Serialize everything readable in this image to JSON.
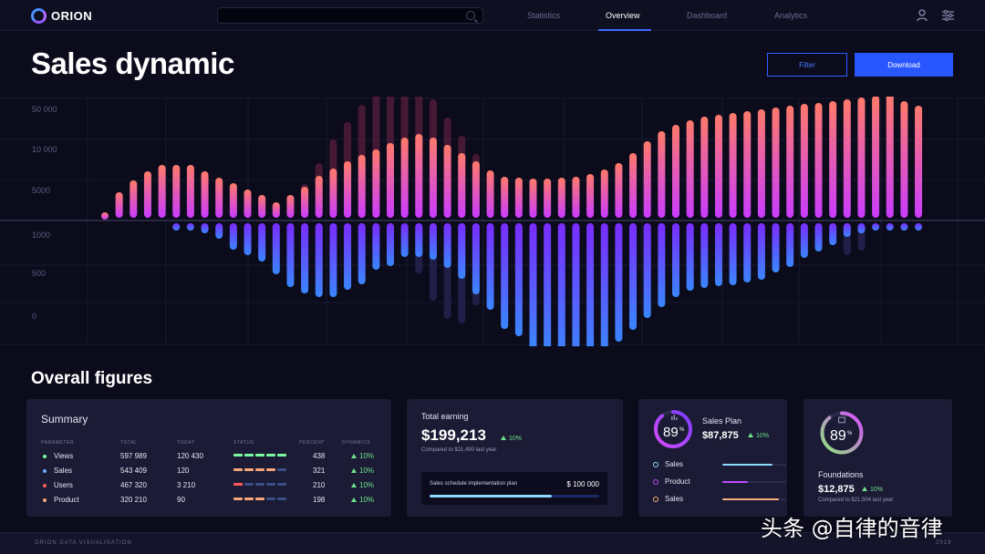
{
  "app": {
    "brand": "ORION"
  },
  "nav": {
    "items": [
      "Statistics",
      "Overview",
      "Dashboard",
      "Analytics"
    ],
    "active": "Overview"
  },
  "header": {
    "title": "Sales dynamic",
    "filter_label": "Filter",
    "download_label": "Download"
  },
  "chart_data": {
    "type": "bar",
    "y_tick_labels_upper": [
      "50 000",
      "10 000",
      "5000"
    ],
    "y_tick_labels_lower": [
      "1000",
      "500",
      "0"
    ],
    "series": [
      {
        "direction": "up",
        "values_bright": [
          0.06,
          0.28,
          0.41,
          0.51,
          0.58,
          0.58,
          0.58,
          0.51,
          0.44,
          0.38,
          0.31,
          0.25,
          0.17,
          0.25,
          0.34,
          0.46,
          0.54,
          0.62,
          0.69,
          0.75,
          0.82,
          0.88,
          0.92,
          0.88,
          0.8,
          0.71,
          0.62,
          0.52,
          0.45,
          0.44,
          0.43,
          0.43,
          0.44,
          0.45,
          0.48,
          0.53,
          0.6,
          0.71,
          0.84,
          0.95,
          1.02,
          1.07,
          1.11,
          1.13,
          1.15,
          1.17,
          1.19,
          1.21,
          1.23,
          1.25,
          1.26,
          1.28,
          1.3,
          1.32,
          1.34,
          1.36,
          1.28,
          1.23
        ],
        "values_dim": [
          0,
          0,
          0,
          0,
          0,
          0,
          0,
          0,
          0,
          0,
          0,
          0,
          0,
          0.2,
          0.37,
          0.6,
          0.86,
          1.05,
          1.24,
          1.4,
          1.5,
          1.5,
          1.4,
          1.3,
          1.1,
          0.9,
          0.7,
          0,
          0,
          0,
          0,
          0,
          0,
          0,
          0,
          0,
          0,
          0,
          0,
          0,
          0,
          0,
          0,
          0,
          0,
          0,
          0,
          0,
          0,
          0,
          0,
          0,
          0,
          0,
          0,
          1.3,
          0,
          0
        ]
      },
      {
        "direction": "down",
        "values_bright": [
          0,
          0,
          0,
          0,
          0,
          0.08,
          0.08,
          0.11,
          0.17,
          0.29,
          0.35,
          0.42,
          0.56,
          0.7,
          0.77,
          0.81,
          0.81,
          0.73,
          0.67,
          0.51,
          0.47,
          0.37,
          0.37,
          0.4,
          0.49,
          0.61,
          0.78,
          0.95,
          1.16,
          1.24,
          1.38,
          1.41,
          1.47,
          1.48,
          1.46,
          1.41,
          1.3,
          1.17,
          1.04,
          0.92,
          0.81,
          0.74,
          0.71,
          0.69,
          0.68,
          0.65,
          0.62,
          0.54,
          0.48,
          0.38,
          0.31,
          0.24,
          0.15,
          0.11,
          0.06,
          0.06,
          0.06,
          0.06
        ],
        "values_dim": [
          0,
          0,
          0,
          0,
          0,
          0,
          0,
          0,
          0,
          0,
          0,
          0,
          0,
          0,
          0,
          0,
          0,
          0,
          0,
          0,
          0,
          0,
          0.55,
          0.85,
          1.05,
          1.1,
          0.9,
          0.7,
          0,
          0,
          0,
          0,
          0,
          0,
          0,
          0,
          0,
          0,
          0,
          0,
          0,
          0,
          0,
          0,
          0,
          0,
          0,
          0,
          0,
          0,
          0,
          0,
          0.35,
          0.3,
          0,
          0,
          0,
          0
        ]
      }
    ]
  },
  "overall": {
    "title": "Overall figures"
  },
  "summary": {
    "title": "Summary",
    "columns": [
      "PARAMETER",
      "TOTAL",
      "TODAY",
      "STATUS",
      "PERCENT",
      "DYNAMICS"
    ],
    "rows": [
      {
        "name": "Views",
        "total": "597 989",
        "today": "120 430",
        "percent": "438",
        "dynamics": "10%",
        "dot_color": "#7affa0",
        "status_colors": [
          "#7affa0",
          "#7affa0",
          "#7affa0",
          "#7affa0",
          "#7affa0"
        ]
      },
      {
        "name": "Sales",
        "total": "543 409",
        "today": "120",
        "percent": "321",
        "dynamics": "10%",
        "dot_color": "#6aa8ff",
        "status_colors": [
          "#f7a77c",
          "#f7a77c",
          "#f7a77c",
          "#f7a77c",
          "#3b4f86"
        ]
      },
      {
        "name": "Users",
        "total": "467 320",
        "today": "3 210",
        "percent": "210",
        "dynamics": "10%",
        "dot_color": "#ff5a5a",
        "status_colors": [
          "#ff5a5a",
          "#3b4f86",
          "#3b4f86",
          "#3b4f86",
          "#3b4f86"
        ]
      },
      {
        "name": "Product",
        "total": "320 210",
        "today": "90",
        "percent": "198",
        "dynamics": "10%",
        "dot_color": "#f7a77c",
        "status_colors": [
          "#f7a77c",
          "#f7a77c",
          "#f7a77c",
          "#3b4f86",
          "#3b4f86"
        ]
      }
    ]
  },
  "earning": {
    "label": "Total earning",
    "value": "$199,213",
    "change": "10%",
    "compare": "Compared to $21,490 last year",
    "plan_label": "Sales schedule implementation plan",
    "plan_amount": "$ 100 000",
    "plan_progress": 0.72
  },
  "sales_plan": {
    "gauge_value": "89",
    "gauge_unit": "%",
    "gauge_fraction": 0.89,
    "title": "Sales Plan",
    "value": "$87,875",
    "change": "10%",
    "legend": [
      {
        "label": "Sales",
        "color": "#8fd8ff",
        "progress": 0.78
      },
      {
        "label": "Product",
        "color": "#c04cff",
        "progress": 0.4
      },
      {
        "label": "Sales",
        "color": "#f7b07c",
        "progress": 0.88
      }
    ]
  },
  "foundations": {
    "gauge_value": "89",
    "gauge_unit": "%",
    "gauge_fraction": 0.89,
    "title": "Foundations",
    "value": "$12,875",
    "change": "10%",
    "compare": "Compared to $21,504 last year"
  },
  "footer": {
    "left": "ORION DATA VISUALISATION",
    "right": "2019"
  },
  "watermark": "头条 @自律的音律"
}
